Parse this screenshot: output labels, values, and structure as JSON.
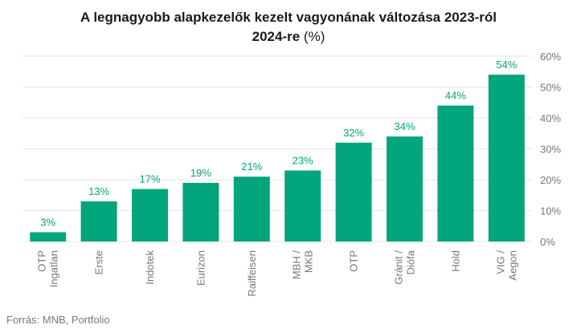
{
  "title_line1": "A legnagyobb alapkezelők kezelt vagyonának változása 2023-ról",
  "title_line2": "2024-re",
  "title_unit": "(%)",
  "source": "Forrás: MNB, Portfolio",
  "colors": {
    "bar": "#03a57d",
    "label": "#03a57d",
    "axis_text": "#777777",
    "grid": "#e6e6e6"
  },
  "chart_data": {
    "type": "bar",
    "title": "A legnagyobb alapkezelők kezelt vagyonának változása 2023-ról 2024-re (%)",
    "categories": [
      "OTP Ingatlan",
      "Erste",
      "Indotek",
      "Eurizon",
      "Raiffeisen",
      "MBH / MKB",
      "OTP",
      "Gránit / Diófa",
      "Hold",
      "VIG / Aegon"
    ],
    "category_lines": [
      [
        "OTP",
        "Ingatlan"
      ],
      [
        "Erste"
      ],
      [
        "Indotek"
      ],
      [
        "Eurizon"
      ],
      [
        "Raiffeisen"
      ],
      [
        "MBH /",
        "MKB"
      ],
      [
        "OTP"
      ],
      [
        "Gránit /",
        "Diófa"
      ],
      [
        "Hold"
      ],
      [
        "VIG /",
        "Aegon"
      ]
    ],
    "values": [
      3,
      13,
      17,
      19,
      21,
      23,
      32,
      34,
      44,
      54
    ],
    "value_labels": [
      "3%",
      "13%",
      "17%",
      "19%",
      "21%",
      "23%",
      "32%",
      "34%",
      "44%",
      "54%"
    ],
    "ylim": [
      0,
      60
    ],
    "yticks": [
      0,
      10,
      20,
      30,
      40,
      50,
      60
    ],
    "ytick_labels": [
      "0%",
      "10%",
      "20%",
      "30%",
      "40%",
      "50%",
      "60%"
    ],
    "y_axis_side": "right",
    "grid": true,
    "xlabel": "",
    "ylabel": ""
  }
}
